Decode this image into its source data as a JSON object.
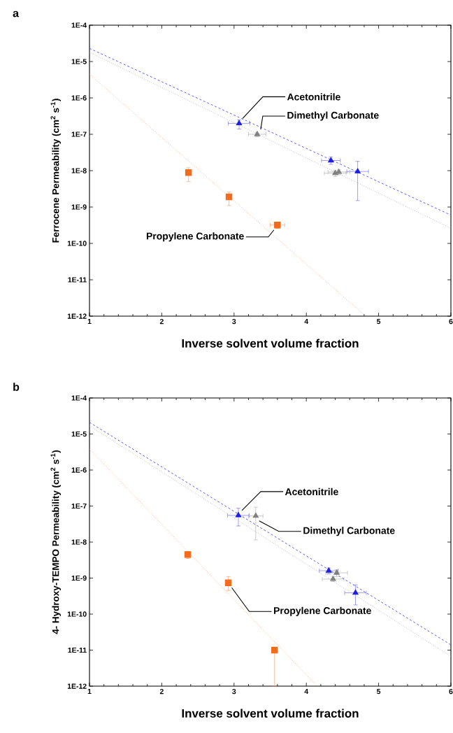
{
  "chart_data": [
    {
      "type": "scatter",
      "title": "a",
      "xlabel": "Inverse solvent volume fraction",
      "ylabel": "Ferrocene Permeability (cm$^{2}$ s$^{-1}$)",
      "log": "y",
      "xlim": [
        1,
        6
      ],
      "ylim": [
        1e-12,
        0.0001
      ],
      "xticks": [
        1,
        2,
        3,
        4,
        5,
        6
      ],
      "yticks": [
        {
          "value": 1e-12,
          "label": "1E-12"
        },
        {
          "value": 1e-11,
          "label": "1E-11"
        },
        {
          "value": 1e-10,
          "label": "1E-10"
        },
        {
          "value": 1e-09,
          "label": "1E-9"
        },
        {
          "value": 1e-08,
          "label": "1E-8"
        },
        {
          "value": 1e-07,
          "label": "1E-7"
        },
        {
          "value": 1e-06,
          "label": "1E-6"
        },
        {
          "value": 1e-05,
          "label": "1E-5"
        },
        {
          "value": 0.0001,
          "label": "1E-4"
        }
      ],
      "series": [
        {
          "color": "#1f1fe0",
          "marker": "triangle",
          "x": [
            3.07,
            4.34,
            4.71
          ],
          "values": [
            2e-07,
            1.9e-08,
            9.5e-09
          ],
          "errors": [
            [
              1.4e-07,
              2.5e-07
            ],
            [
              1.5e-08,
              2.4e-08
            ],
            [
              1.5e-09,
              1.8e-08
            ]
          ],
          "xerrors": [
            0.15,
            0.13,
            0.15
          ]
        },
        {
          "color": "#808080",
          "marker": "triangle",
          "x": [
            3.32,
            4.4,
            4.45
          ],
          "values": [
            1e-07,
            8.5e-09,
            9.2e-09
          ],
          "errors": [
            [
              8.5e-08,
              1.1e-07
            ],
            [
              7e-09,
              1e-08
            ],
            [
              7.7e-09,
              1.05e-08
            ]
          ],
          "xerrors": [
            0.12,
            0.15,
            0.15
          ]
        },
        {
          "color": "#f26a1b",
          "marker": "square",
          "x": [
            2.37,
            2.93,
            3.6
          ],
          "values": [
            8.9e-09,
            1.9e-09,
            3.2e-10
          ],
          "errors": [
            [
              5e-09,
              1.2e-08
            ],
            [
              1.1e-09,
              2.6e-09
            ],
            [
              2.6e-10,
              3.7e-10
            ]
          ],
          "xerrors": [
            null,
            null,
            0.1
          ]
        },
        {
          "type": "line",
          "color": "#4a4aff",
          "line_style": "dashed",
          "marker": "none",
          "x": [
            1,
            6
          ],
          "values": [
            2.3e-05,
            6e-10
          ]
        },
        {
          "type": "line",
          "color": "#b0b0b0",
          "line_style": "dotted",
          "marker": "none",
          "x": [
            1,
            6
          ],
          "values": [
            1.8e-05,
            2.6e-10
          ]
        },
        {
          "type": "line",
          "color": "#ffa070",
          "line_style": "dotted",
          "marker": "none",
          "x": [
            1,
            4.82
          ],
          "values": [
            4.5e-06,
            1e-12
          ]
        }
      ],
      "annotations": [
        {
          "text": "Acetonitrile",
          "x": 3.07,
          "y": 2e-07
        },
        {
          "text": "Dimethyl Carbonate",
          "x": 3.32,
          "y": 1e-07
        },
        {
          "text": "Propylene Carbonate",
          "x": 3.6,
          "y": 3.2e-10
        }
      ]
    },
    {
      "type": "scatter",
      "title": "b",
      "xlabel": "Inverse solvent volume fraction",
      "ylabel": "4- Hydroxy-TEMPO Permeability (cm$^{2}$ s$^{-1}$)",
      "log": "y",
      "xlim": [
        1,
        6
      ],
      "ylim": [
        1e-12,
        0.0001
      ],
      "xticks": [
        1,
        2,
        3,
        4,
        5,
        6
      ],
      "yticks": [
        {
          "value": 1e-12,
          "label": "1E-12"
        },
        {
          "value": 1e-11,
          "label": "1E-11"
        },
        {
          "value": 1e-10,
          "label": "1E-10"
        },
        {
          "value": 1e-09,
          "label": "1E-9"
        },
        {
          "value": 1e-08,
          "label": "1E-8"
        },
        {
          "value": 1e-07,
          "label": "1E-7"
        },
        {
          "value": 1e-06,
          "label": "1E-6"
        },
        {
          "value": 1e-05,
          "label": "1E-5"
        },
        {
          "value": 0.0001,
          "label": "1E-4"
        }
      ],
      "series": [
        {
          "color": "#1f1fe0",
          "marker": "triangle",
          "x": [
            3.06,
            4.31,
            4.68
          ],
          "values": [
            5.5e-08,
            1.6e-09,
            3.9e-10
          ],
          "errors": [
            [
              2.8e-08,
              8.7e-08
            ],
            [
              1.3e-09,
              1.9e-09
            ],
            [
              1.8e-10,
              6.5e-10
            ]
          ],
          "xerrors": [
            0.15,
            0.13,
            0.15
          ]
        },
        {
          "color": "#808080",
          "marker": "triangle",
          "x": [
            3.3,
            4.42,
            4.37
          ],
          "values": [
            5.3e-08,
            1.4e-09,
            9.4e-10
          ],
          "errors": [
            [
              1.15e-08,
              9.3e-08
            ],
            [
              1.1e-09,
              1.7e-09
            ],
            [
              8e-10,
              1.1e-09
            ]
          ],
          "xerrors": [
            0.1,
            0.15,
            0.15
          ]
        },
        {
          "color": "#f26a1b",
          "marker": "square",
          "x": [
            2.36,
            2.92,
            3.56
          ],
          "values": [
            4.5e-09,
            7.4e-10,
            1e-11
          ],
          "errors": [
            [
              3.5e-09,
              5.5e-09
            ],
            [
              4.5e-10,
              1.1e-09
            ],
            [
              1e-12,
              1e-11
            ]
          ]
        },
        {
          "type": "line",
          "color": "#4a4aff",
          "line_style": "dashed",
          "marker": "none",
          "x": [
            1,
            6
          ],
          "values": [
            2.1e-05,
            1.4e-11
          ]
        },
        {
          "type": "line",
          "color": "#b0b0b0",
          "line_style": "dotted",
          "marker": "none",
          "x": [
            1,
            6
          ],
          "values": [
            1.7e-05,
            6.7e-12
          ]
        },
        {
          "type": "line",
          "color": "#ffa070",
          "line_style": "dotted",
          "marker": "none",
          "x": [
            1,
            4.15
          ],
          "values": [
            3.8e-06,
            1e-12
          ]
        }
      ],
      "annotations": [
        {
          "text": "Acetonitrile",
          "x": 3.06,
          "y": 5.5e-08
        },
        {
          "text": "Dimethyl Carbonate",
          "x": 3.3,
          "y": 5.3e-08
        },
        {
          "text": "Propylene Carbonate",
          "x": 2.92,
          "y": 7.4e-10
        }
      ]
    }
  ]
}
